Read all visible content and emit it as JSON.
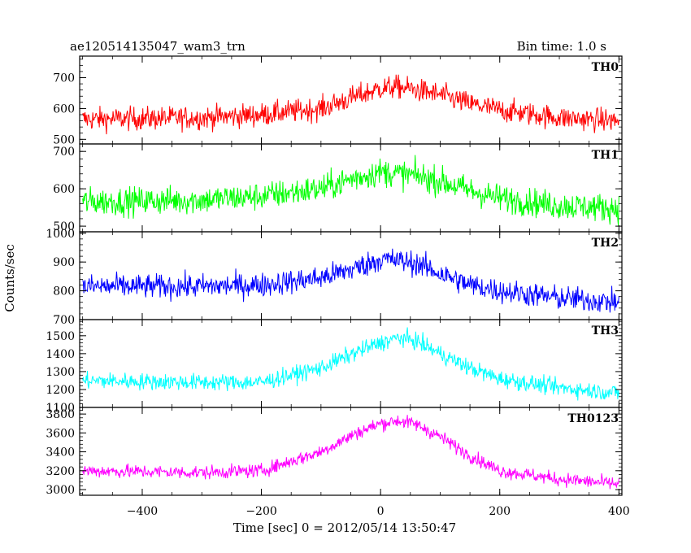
{
  "chart_data": {
    "type": "line",
    "title_left": "ae120514135047_wam3_trn",
    "title_right": "Bin time: 1.0 s",
    "xlabel": "Time [sec] 0 = 2012/05/14 13:50:47",
    "ylabel": "Counts/sec",
    "xlim": [
      -505,
      405
    ],
    "xticks": [
      -400,
      -200,
      0,
      200,
      400
    ],
    "grid": false,
    "bin_time_s": 1.0,
    "panels": [
      {
        "label": "TH0",
        "color": "#ff0000",
        "ylim": [
          485,
          770
        ],
        "yticks": [
          500,
          600,
          700
        ],
        "profile_x": [
          -500,
          -300,
          -200,
          -100,
          -40,
          0,
          30,
          60,
          100,
          150,
          200,
          300,
          400
        ],
        "profile_y": [
          565,
          570,
          580,
          600,
          640,
          665,
          670,
          660,
          645,
          615,
          595,
          570,
          560
        ],
        "noise_amplitude": 34
      },
      {
        "label": "TH1",
        "color": "#00ff00",
        "ylim": [
          485,
          720
        ],
        "yticks": [
          500,
          600,
          700
        ],
        "profile_x": [
          -500,
          -300,
          -200,
          -100,
          -40,
          0,
          30,
          60,
          100,
          150,
          200,
          300,
          400
        ],
        "profile_y": [
          565,
          570,
          580,
          600,
          630,
          645,
          640,
          635,
          620,
          595,
          575,
          555,
          548
        ],
        "noise_amplitude": 34
      },
      {
        "label": "TH2",
        "color": "#0000ff",
        "ylim": [
          700,
          1005
        ],
        "yticks": [
          700,
          800,
          900,
          1000
        ],
        "profile_x": [
          -500,
          -300,
          -200,
          -100,
          -40,
          0,
          30,
          60,
          100,
          150,
          200,
          300,
          400
        ],
        "profile_y": [
          815,
          815,
          820,
          845,
          880,
          910,
          905,
          895,
          860,
          820,
          800,
          775,
          760
        ],
        "noise_amplitude": 38
      },
      {
        "label": "TH3",
        "color": "#00ffff",
        "ylim": [
          1100,
          1590
        ],
        "yticks": [
          1100,
          1200,
          1300,
          1400,
          1500
        ],
        "profile_x": [
          -500,
          -300,
          -200,
          -100,
          -40,
          0,
          30,
          60,
          100,
          150,
          200,
          300,
          400
        ],
        "profile_y": [
          1250,
          1240,
          1240,
          1320,
          1410,
          1460,
          1490,
          1470,
          1400,
          1320,
          1260,
          1210,
          1180
        ],
        "noise_amplitude": 42
      },
      {
        "label": "TH0123",
        "color": "#ff00ff",
        "ylim": [
          2940,
          3870
        ],
        "yticks": [
          3000,
          3200,
          3400,
          3600,
          3800
        ],
        "profile_x": [
          -500,
          -300,
          -200,
          -100,
          -40,
          0,
          30,
          60,
          100,
          150,
          200,
          300,
          400
        ],
        "profile_y": [
          3200,
          3180,
          3200,
          3400,
          3600,
          3700,
          3730,
          3690,
          3560,
          3360,
          3200,
          3110,
          3060
        ],
        "noise_amplitude": 65
      }
    ]
  }
}
